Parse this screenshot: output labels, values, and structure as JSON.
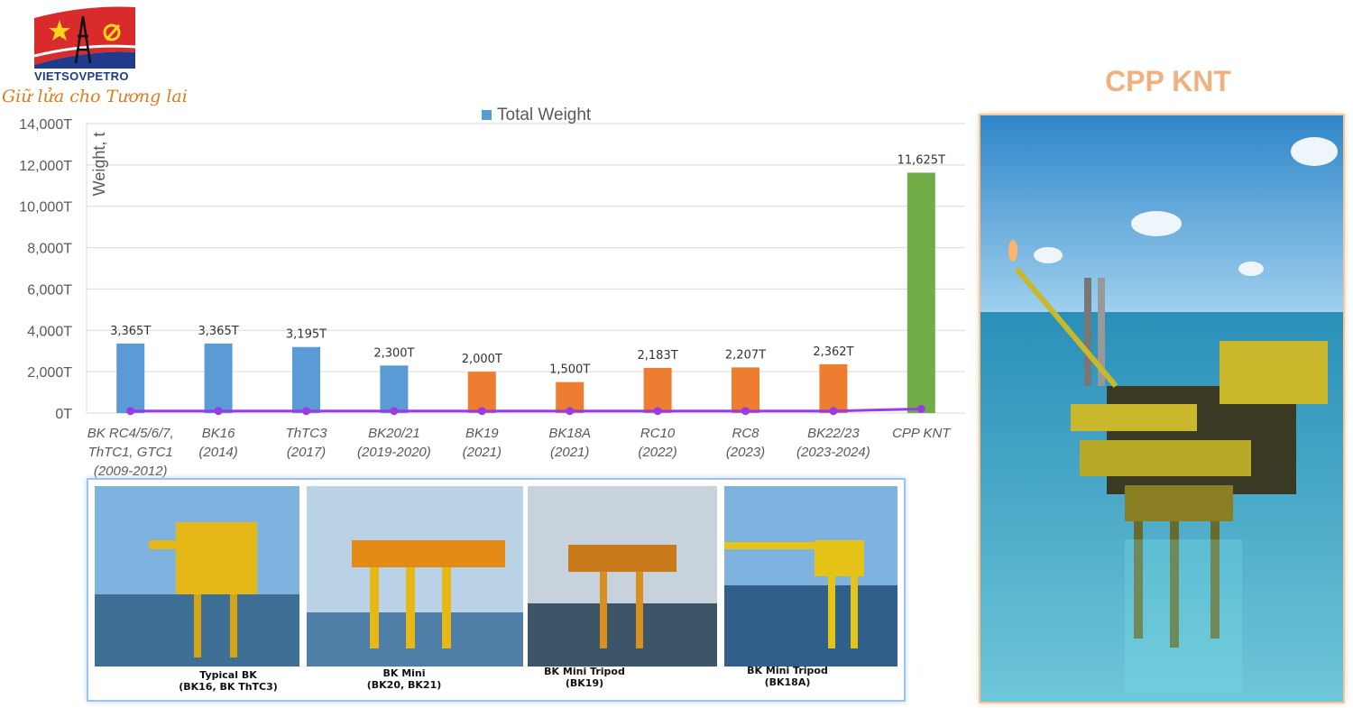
{
  "header": {
    "brand": "VIETSOVPETRO",
    "slogan": "Giữ lửa cho Tương lai"
  },
  "right_panel": {
    "title": "CPP KNT"
  },
  "gallery": [
    {
      "line1": "Typical BK",
      "line2": "(BK16, BK ThTC3)"
    },
    {
      "line1": "BK Mini",
      "line2": "(BK20, BK21)"
    },
    {
      "line1": "BK Mini Tripod",
      "line2": "(BK19)"
    },
    {
      "line1": "BK Mini Tripod",
      "line2": "(BK18A)"
    }
  ],
  "colors": {
    "blue": "#5b9bd5",
    "orange": "#ed7d31",
    "green": "#70ad47",
    "trend": "#9a3ce6",
    "grid": "#d9d9d9",
    "axis_text": "#595959"
  },
  "chart_data": {
    "type": "bar",
    "legend": "Total Weight",
    "legend_position": "top-center",
    "ylabel": "Weight, t",
    "ylim": [
      0,
      14000
    ],
    "yticks": [
      "0T",
      "2,000T",
      "4,000T",
      "6,000T",
      "8,000T",
      "10,000T",
      "12,000T",
      "14,000T"
    ],
    "grid": true,
    "categories": [
      [
        "BK RC4/5/6/7,",
        "ThTC1, GTC1",
        "(2009-2012)"
      ],
      [
        "BK16",
        "(2014)"
      ],
      [
        "ThTC3",
        "(2017)"
      ],
      [
        "BK20/21",
        "(2019-2020)"
      ],
      [
        "BK19",
        "(2021)"
      ],
      [
        "BK18A",
        "(2021)"
      ],
      [
        "RC10",
        "(2022)"
      ],
      [
        "RC8",
        "(2023)"
      ],
      [
        "BK22/23",
        "(2023-2024)"
      ],
      [
        "CPP KNT"
      ]
    ],
    "values": [
      3365,
      3365,
      3195,
      2300,
      2000,
      1500,
      2183,
      2207,
      2362,
      11625
    ],
    "labels": [
      "3,365T",
      "3,365T",
      "3,195T",
      "2,300T",
      "2,000T",
      "1,500T",
      "2,183T",
      "2,207T",
      "2,362T",
      "11,625T"
    ],
    "bar_colors": [
      "blue",
      "blue",
      "blue",
      "blue",
      "orange",
      "orange",
      "orange",
      "orange",
      "orange",
      "green"
    ],
    "trend_line": [
      100,
      100,
      100,
      100,
      100,
      100,
      100,
      100,
      100,
      200
    ]
  }
}
